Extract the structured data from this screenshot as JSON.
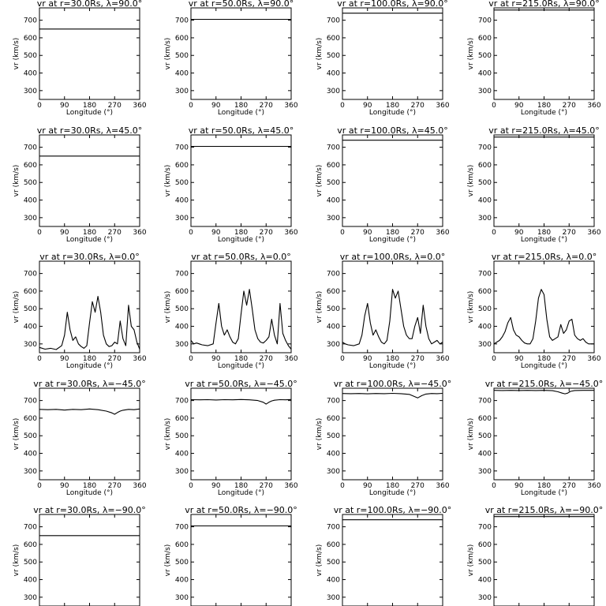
{
  "chart_data": {
    "type": "line",
    "layout": "5 rows x 4 columns of line plots",
    "grid": false,
    "legend": "none",
    "xlabel": "Longitude (°)",
    "ylabel": "vr (km/s)",
    "xlim": [
      0,
      360
    ],
    "ylim": [
      250,
      770
    ],
    "xticks": [
      0,
      90,
      180,
      270,
      360
    ],
    "yticks": [
      300,
      400,
      500,
      600,
      700
    ],
    "panels": [
      {
        "title": "vr at r=30.0Rs, λ=90.0°",
        "series": [
          {
            "x": [
              0,
              360
            ],
            "y": [
              650,
              650
            ]
          }
        ]
      },
      {
        "title": "vr at r=50.0Rs, λ=90.0°",
        "series": [
          {
            "x": [
              0,
              360
            ],
            "y": [
              705,
              705
            ]
          }
        ]
      },
      {
        "title": "vr at r=100.0Rs, λ=90.0°",
        "series": [
          {
            "x": [
              0,
              360
            ],
            "y": [
              740,
              740
            ]
          }
        ]
      },
      {
        "title": "vr at r=215.0Rs, λ=90.0°",
        "series": [
          {
            "x": [
              0,
              360
            ],
            "y": [
              758,
              758
            ]
          }
        ]
      },
      {
        "title": "vr at r=30.0Rs, λ=45.0°",
        "series": [
          {
            "x": [
              0,
              360
            ],
            "y": [
              650,
              650
            ]
          }
        ]
      },
      {
        "title": "vr at r=50.0Rs, λ=45.0°",
        "series": [
          {
            "x": [
              0,
              360
            ],
            "y": [
              705,
              705
            ]
          }
        ]
      },
      {
        "title": "vr at r=100.0Rs, λ=45.0°",
        "series": [
          {
            "x": [
              0,
              360
            ],
            "y": [
              740,
              740
            ]
          }
        ]
      },
      {
        "title": "vr at r=215.0Rs, λ=45.0°",
        "series": [
          {
            "x": [
              0,
              360
            ],
            "y": [
              758,
              758
            ]
          }
        ]
      },
      {
        "title": "vr at r=30.0Rs, λ=0.0°",
        "series": [
          {
            "x": [
              0,
              20,
              40,
              60,
              80,
              90,
              100,
              110,
              120,
              130,
              140,
              150,
              160,
              170,
              180,
              190,
              200,
              210,
              220,
              230,
              240,
              250,
              260,
              270,
              280,
              290,
              300,
              310,
              320,
              330,
              340,
              350,
              360
            ],
            "y": [
              280,
              270,
              275,
              268,
              290,
              350,
              480,
              380,
              320,
              340,
              300,
              285,
              275,
              290,
              420,
              540,
              480,
              570,
              480,
              350,
              300,
              285,
              290,
              310,
              300,
              430,
              330,
              290,
              520,
              400,
              380,
              310,
              270
            ]
          }
        ]
      },
      {
        "title": "vr at r=50.0Rs, λ=0.0°",
        "series": [
          {
            "x": [
              0,
              10,
              20,
              40,
              60,
              80,
              90,
              100,
              110,
              120,
              130,
              140,
              150,
              160,
              170,
              180,
              190,
              200,
              210,
              220,
              230,
              240,
              250,
              260,
              270,
              280,
              290,
              300,
              310,
              320,
              330,
              340,
              350,
              360
            ],
            "y": [
              320,
              300,
              305,
              295,
              290,
              300,
              420,
              530,
              400,
              350,
              380,
              340,
              310,
              300,
              330,
              470,
              600,
              520,
              610,
              500,
              380,
              330,
              310,
              305,
              320,
              340,
              440,
              350,
              300,
              530,
              360,
              320,
              290,
              270
            ]
          }
        ]
      },
      {
        "title": "vr at r=100.0Rs, λ=0.0°",
        "series": [
          {
            "x": [
              0,
              10,
              20,
              40,
              60,
              70,
              80,
              90,
              100,
              110,
              120,
              130,
              140,
              150,
              160,
              170,
              180,
              190,
              200,
              210,
              220,
              230,
              240,
              250,
              260,
              270,
              280,
              290,
              300,
              310,
              320,
              330,
              340,
              350,
              360
            ],
            "y": [
              310,
              300,
              295,
              290,
              300,
              350,
              460,
              530,
              420,
              350,
              380,
              340,
              310,
              300,
              320,
              430,
              610,
              560,
              600,
              500,
              400,
              350,
              330,
              330,
              400,
              450,
              360,
              520,
              400,
              330,
              300,
              310,
              320,
              300,
              310
            ]
          }
        ]
      },
      {
        "title": "vr at r=215.0Rs, λ=0.0°",
        "series": [
          {
            "x": [
              0,
              10,
              20,
              30,
              40,
              50,
              60,
              70,
              80,
              90,
              100,
              110,
              120,
              130,
              140,
              150,
              160,
              170,
              180,
              190,
              200,
              210,
              220,
              230,
              240,
              250,
              260,
              270,
              280,
              290,
              300,
              310,
              320,
              330,
              340,
              350,
              360
            ],
            "y": [
              300,
              310,
              320,
              340,
              370,
              420,
              450,
              380,
              350,
              340,
              320,
              305,
              300,
              300,
              330,
              430,
              560,
              610,
              580,
              440,
              340,
              320,
              330,
              340,
              410,
              360,
              380,
              430,
              440,
              350,
              330,
              320,
              330,
              310,
              300,
              300,
              300
            ]
          }
        ]
      },
      {
        "title": "vr at r=30.0Rs, λ=−45.0°",
        "series": [
          {
            "x": [
              0,
              30,
              60,
              90,
              120,
              150,
              180,
              210,
              240,
              260,
              270,
              280,
              290,
              300,
              320,
              340,
              360
            ],
            "y": [
              650,
              648,
              650,
              646,
              650,
              648,
              652,
              648,
              640,
              630,
              622,
              632,
              640,
              645,
              650,
              648,
              652
            ]
          }
        ]
      },
      {
        "title": "vr at r=50.0Rs, λ=−45.0°",
        "series": [
          {
            "x": [
              0,
              30,
              60,
              90,
              120,
              150,
              180,
              210,
              240,
              260,
              270,
              280,
              290,
              300,
              320,
              340,
              360
            ],
            "y": [
              705,
              704,
              705,
              703,
              705,
              704,
              706,
              704,
              700,
              690,
              680,
              690,
              698,
              702,
              705,
              704,
              706
            ]
          }
        ]
      },
      {
        "title": "vr at r=100.0Rs, λ=−45.0°",
        "series": [
          {
            "x": [
              0,
              30,
              60,
              90,
              120,
              150,
              180,
              210,
              240,
              255,
              270,
              285,
              300,
              320,
              340,
              360
            ],
            "y": [
              740,
              739,
              740,
              738,
              740,
              739,
              741,
              739,
              735,
              725,
              715,
              728,
              737,
              740,
              739,
              741
            ]
          }
        ]
      },
      {
        "title": "vr at r=215.0Rs, λ=−45.0°",
        "series": [
          {
            "x": [
              0,
              30,
              60,
              90,
              120,
              150,
              180,
              210,
              230,
              245,
              255,
              265,
              275,
              290,
              320,
              360
            ],
            "y": [
              758,
              757,
              758,
              757,
              758,
              757,
              758,
              756,
              750,
              742,
              738,
              742,
              752,
              757,
              758,
              758
            ]
          }
        ]
      },
      {
        "title": "vr at r=30.0Rs, λ=−90.0°",
        "series": [
          {
            "x": [
              0,
              360
            ],
            "y": [
              650,
              650
            ]
          }
        ]
      },
      {
        "title": "vr at r=50.0Rs, λ=−90.0°",
        "series": [
          {
            "x": [
              0,
              360
            ],
            "y": [
              705,
              705
            ]
          }
        ]
      },
      {
        "title": "vr at r=100.0Rs, λ=−90.0°",
        "series": [
          {
            "x": [
              0,
              360
            ],
            "y": [
              740,
              740
            ]
          }
        ]
      },
      {
        "title": "vr at r=215.0Rs, λ=−90.0°",
        "series": [
          {
            "x": [
              0,
              360
            ],
            "y": [
              758,
              758
            ]
          }
        ]
      }
    ]
  }
}
